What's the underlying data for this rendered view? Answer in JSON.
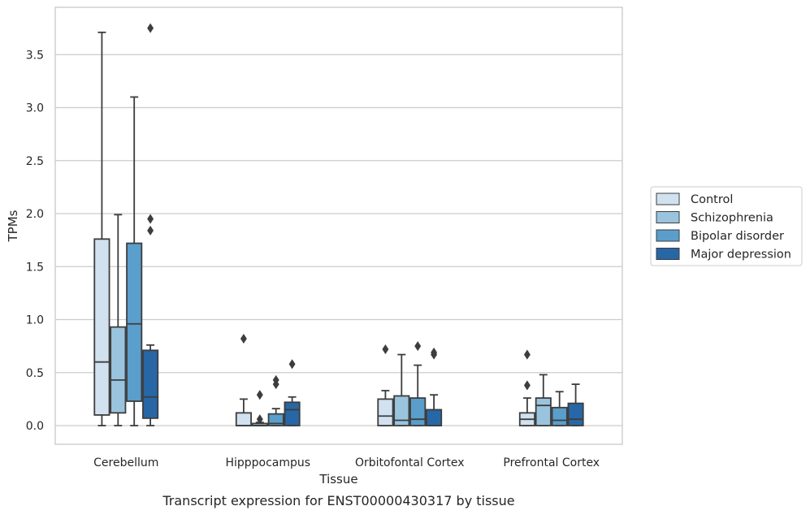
{
  "chart_data": {
    "type": "box",
    "xlabel": "Tissue",
    "ylabel": "TPMs",
    "caption": "Transcript expression for ENST00000430317 by tissue",
    "ylim": [
      -0.18,
      3.9
    ],
    "yticks": [
      "0.0",
      "0.5",
      "1.0",
      "1.5",
      "2.0",
      "2.5",
      "3.0",
      "3.5"
    ],
    "grid": "horizontal",
    "legend_position": "right",
    "categories": [
      "Cerebellum",
      "Hipppocampus",
      "Orbitofontal Cortex",
      "Prefrontal Cortex"
    ],
    "series": [
      {
        "name": "Control",
        "color": "#d1e1ef",
        "boxes": [
          {
            "whislo": 0.0,
            "q1": 0.1,
            "med": 0.6,
            "q3": 1.76,
            "whishi": 3.71,
            "fliers": []
          },
          {
            "whislo": 0.0,
            "q1": 0.0,
            "med": 0.0,
            "q3": 0.12,
            "whishi": 0.25,
            "fliers": [
              0.82
            ]
          },
          {
            "whislo": 0.0,
            "q1": 0.0,
            "med": 0.09,
            "q3": 0.25,
            "whishi": 0.33,
            "fliers": [
              0.72
            ]
          },
          {
            "whislo": 0.0,
            "q1": 0.0,
            "med": 0.06,
            "q3": 0.12,
            "whishi": 0.26,
            "fliers": [
              0.38,
              0.67
            ]
          }
        ]
      },
      {
        "name": "Schizophrenia",
        "color": "#9ac4de",
        "boxes": [
          {
            "whislo": 0.0,
            "q1": 0.12,
            "med": 0.43,
            "q3": 0.93,
            "whishi": 1.99,
            "fliers": []
          },
          {
            "whislo": 0.0,
            "q1": 0.0,
            "med": 0.0,
            "q3": 0.02,
            "whishi": 0.03,
            "fliers": [
              0.06,
              0.29
            ]
          },
          {
            "whislo": 0.0,
            "q1": 0.0,
            "med": 0.05,
            "q3": 0.28,
            "whishi": 0.67,
            "fliers": []
          },
          {
            "whislo": 0.0,
            "q1": 0.0,
            "med": 0.19,
            "q3": 0.26,
            "whishi": 0.48,
            "fliers": []
          }
        ]
      },
      {
        "name": "Bipolar disorder",
        "color": "#5a9ecb",
        "boxes": [
          {
            "whislo": 0.0,
            "q1": 0.23,
            "med": 0.96,
            "q3": 1.72,
            "whishi": 3.1,
            "fliers": []
          },
          {
            "whislo": 0.0,
            "q1": 0.0,
            "med": 0.02,
            "q3": 0.11,
            "whishi": 0.16,
            "fliers": [
              0.39,
              0.43
            ]
          },
          {
            "whislo": 0.0,
            "q1": 0.0,
            "med": 0.06,
            "q3": 0.26,
            "whishi": 0.57,
            "fliers": [
              0.75
            ]
          },
          {
            "whislo": 0.0,
            "q1": 0.0,
            "med": 0.05,
            "q3": 0.17,
            "whishi": 0.32,
            "fliers": []
          }
        ]
      },
      {
        "name": "Major depression",
        "color": "#2867a6",
        "boxes": [
          {
            "whislo": 0.0,
            "q1": 0.07,
            "med": 0.27,
            "q3": 0.71,
            "whishi": 0.76,
            "fliers": [
              1.84,
              1.95,
              3.75
            ]
          },
          {
            "whislo": 0.0,
            "q1": 0.0,
            "med": 0.15,
            "q3": 0.22,
            "whishi": 0.27,
            "fliers": [
              0.58
            ]
          },
          {
            "whislo": 0.0,
            "q1": 0.0,
            "med": 0.0,
            "q3": 0.15,
            "whishi": 0.29,
            "fliers": [
              0.67,
              0.69
            ]
          },
          {
            "whislo": 0.0,
            "q1": 0.0,
            "med": 0.06,
            "q3": 0.21,
            "whishi": 0.39,
            "fliers": []
          }
        ]
      }
    ]
  }
}
